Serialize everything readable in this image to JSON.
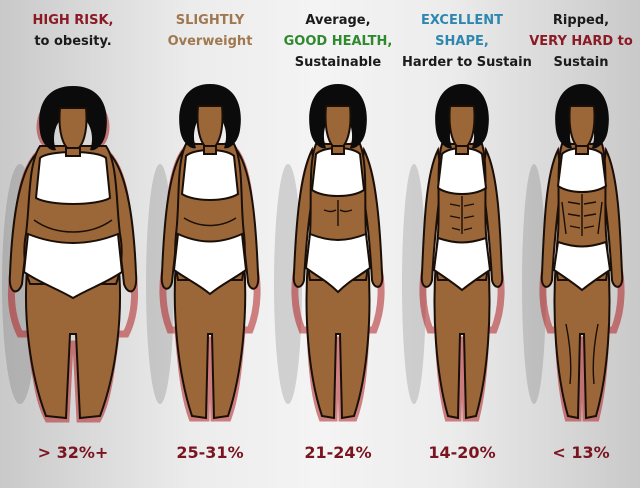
{
  "colors": {
    "high_risk": "#8b1a24",
    "slightly": "#a07850",
    "good_health": "#2f8a2f",
    "excellent": "#2e87b0",
    "very_hard": "#8b1a24",
    "percent": "#7a1420"
  },
  "categories": [
    {
      "lines": [
        {
          "text": "HIGH RISK,",
          "color": "high_risk"
        },
        {
          "text": "to obesity.",
          "color": "default"
        }
      ],
      "percent": "> 32%+"
    },
    {
      "lines": [
        {
          "text": "SLIGHTLY",
          "color": "slightly"
        },
        {
          "text": "Overweight",
          "color": "slightly"
        }
      ],
      "percent": "25-31%"
    },
    {
      "lines": [
        {
          "text": "Average,",
          "color": "default"
        },
        {
          "text": "GOOD HEALTH,",
          "color": "good_health"
        },
        {
          "text": "Sustainable",
          "color": "default"
        }
      ],
      "percent": "21-24%"
    },
    {
      "lines": [
        {
          "text": "EXCELLENT",
          "color": "excellent"
        },
        {
          "text": "SHAPE,",
          "color": "excellent"
        },
        {
          "text": "Harder to Sustain",
          "color": "default"
        }
      ],
      "percent": "14-20%"
    },
    {
      "lines": [
        {
          "text": "Ripped,",
          "color": "default"
        },
        {
          "text": "VERY HARD to",
          "color": "very_hard"
        },
        {
          "text": "Sustain",
          "color": "default"
        }
      ],
      "percent": "< 13%"
    }
  ]
}
